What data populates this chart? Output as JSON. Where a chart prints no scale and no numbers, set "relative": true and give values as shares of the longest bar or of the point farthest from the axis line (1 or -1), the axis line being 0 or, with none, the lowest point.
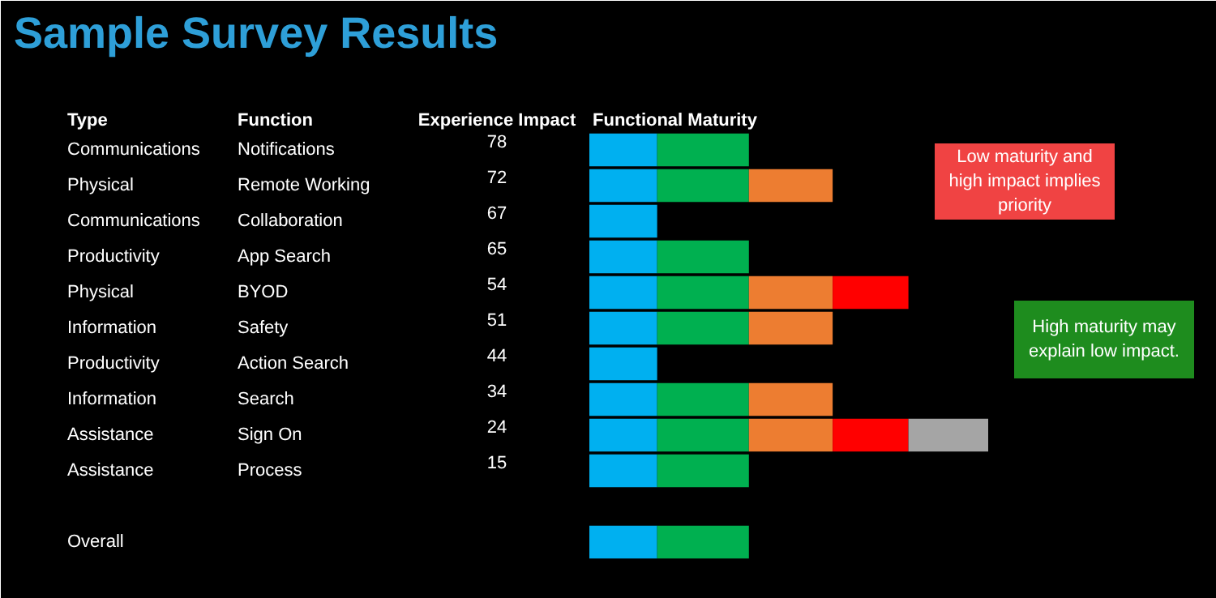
{
  "chart_data": {
    "type": "bar",
    "title": "Sample Survey Results",
    "orientation": "horizontal",
    "stacked": true,
    "relative": true,
    "categories": [
      "Notifications",
      "Remote Working",
      "Collaboration",
      "App Search",
      "BYOD",
      "Safety",
      "Action Search",
      "Search",
      "Sign On",
      "Process",
      null,
      null
    ],
    "series": [
      {
        "color": "#00b0f0",
        "values": [
          0.17,
          0.17,
          0.17,
          0.17,
          0.17,
          0.17,
          0.17,
          0.17,
          0.17,
          0.17,
          null,
          0.17
        ]
      },
      {
        "color": "#00b050",
        "values": [
          0.23,
          0.23,
          null,
          0.23,
          0.23,
          0.23,
          null,
          0.23,
          0.23,
          0.23,
          null,
          0.23
        ]
      },
      {
        "color": "#ed7d31",
        "values": [
          null,
          0.21,
          null,
          null,
          0.21,
          0.21,
          null,
          0.21,
          0.21,
          null,
          null,
          null
        ]
      },
      {
        "color": "#ff0000",
        "values": [
          null,
          null,
          null,
          null,
          0.19,
          null,
          null,
          null,
          0.19,
          null,
          null,
          null
        ]
      },
      {
        "color": "#a5a5a5",
        "values": [
          null,
          null,
          null,
          null,
          null,
          null,
          null,
          null,
          0.2,
          null,
          null,
          null
        ]
      }
    ],
    "annotations": [
      "Type",
      "Function",
      "Experience Impact",
      "Functional Maturity",
      "Low maturity and high impact implies priority",
      "High maturity may explain low impact.",
      "Communications",
      "Physical",
      "Communications",
      "Productivity",
      "Physical",
      "Information",
      "Productivity",
      "Information",
      "Assistance",
      "Assistance",
      "78",
      "72",
      "67",
      "65",
      "54",
      "51",
      "44",
      "34",
      "24",
      "15",
      "Overall"
    ]
  }
}
